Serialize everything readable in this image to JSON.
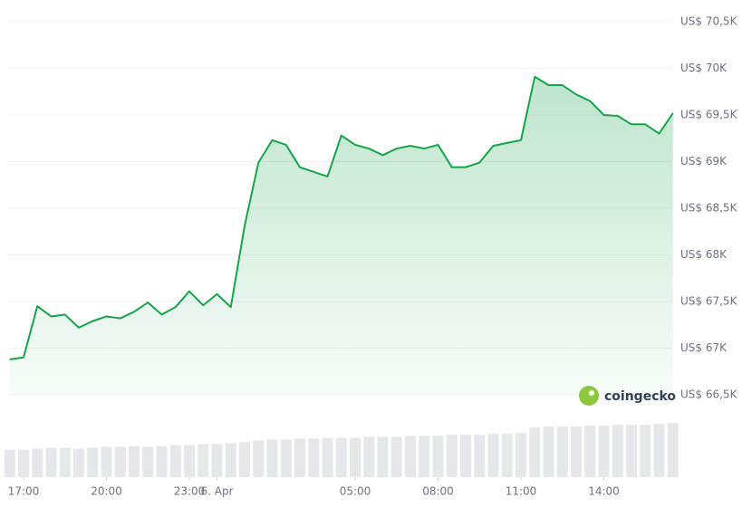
{
  "chart_data": {
    "type": "line",
    "categories": [
      "16:30",
      "17:00",
      "17:30",
      "18:00",
      "18:30",
      "19:00",
      "19:30",
      "20:00",
      "20:30",
      "21:00",
      "21:30",
      "22:00",
      "22:30",
      "23:00",
      "23:30",
      "00:00",
      "00:30",
      "01:00",
      "01:30",
      "02:00",
      "02:30",
      "03:00",
      "03:30",
      "04:00",
      "04:30",
      "05:00",
      "05:30",
      "06:00",
      "06:30",
      "07:00",
      "07:30",
      "08:00",
      "08:30",
      "09:00",
      "09:30",
      "10:00",
      "10:30",
      "11:00",
      "11:30",
      "12:00",
      "12:30",
      "13:00",
      "13:30",
      "14:00",
      "14:30",
      "15:00",
      "15:30",
      "16:00",
      "16:30"
    ],
    "values": [
      66880,
      66900,
      67450,
      67340,
      67360,
      67220,
      67290,
      67340,
      67320,
      67390,
      67490,
      67360,
      67440,
      67610,
      67460,
      67580,
      67440,
      68310,
      68990,
      69230,
      69180,
      68940,
      68890,
      68840,
      69280,
      69180,
      69140,
      69070,
      69140,
      69170,
      69140,
      69180,
      68940,
      68940,
      68990,
      69170,
      69200,
      69230,
      69910,
      69820,
      69820,
      69720,
      69650,
      69500,
      69490,
      69400,
      69400,
      69300,
      69520
    ],
    "volume": [
      30,
      30,
      31,
      32,
      32,
      31,
      32,
      33,
      33,
      34,
      33,
      34,
      35,
      35,
      36,
      36,
      37,
      38,
      40,
      41,
      41,
      42,
      42,
      43,
      43,
      43,
      44,
      44,
      44,
      45,
      45,
      45,
      46,
      46,
      46,
      47,
      47,
      48,
      54,
      55,
      55,
      55,
      56,
      56,
      57,
      57,
      57,
      58,
      59
    ],
    "color": "#16a34a",
    "ylim": [
      66500,
      70500
    ],
    "yticks": [
      {
        "value": 66500,
        "label": "US$ 66,5K"
      },
      {
        "value": 67000,
        "label": "US$ 67K"
      },
      {
        "value": 67500,
        "label": "US$ 67,5K"
      },
      {
        "value": 68000,
        "label": "US$ 68K"
      },
      {
        "value": 68500,
        "label": "US$ 68,5K"
      },
      {
        "value": 69000,
        "label": "US$ 69K"
      },
      {
        "value": 69500,
        "label": "US$ 69,5K"
      },
      {
        "value": 70000,
        "label": "US$ 70K"
      },
      {
        "value": 70500,
        "label": "US$ 70,5K"
      }
    ],
    "xticks": [
      "17:00",
      "20:00",
      "23:00",
      {
        "value": "00:00",
        "label": "6. Apr"
      },
      "05:00",
      "08:00",
      "11:00",
      "14:00"
    ],
    "grid": true,
    "logo": "coingecko"
  }
}
